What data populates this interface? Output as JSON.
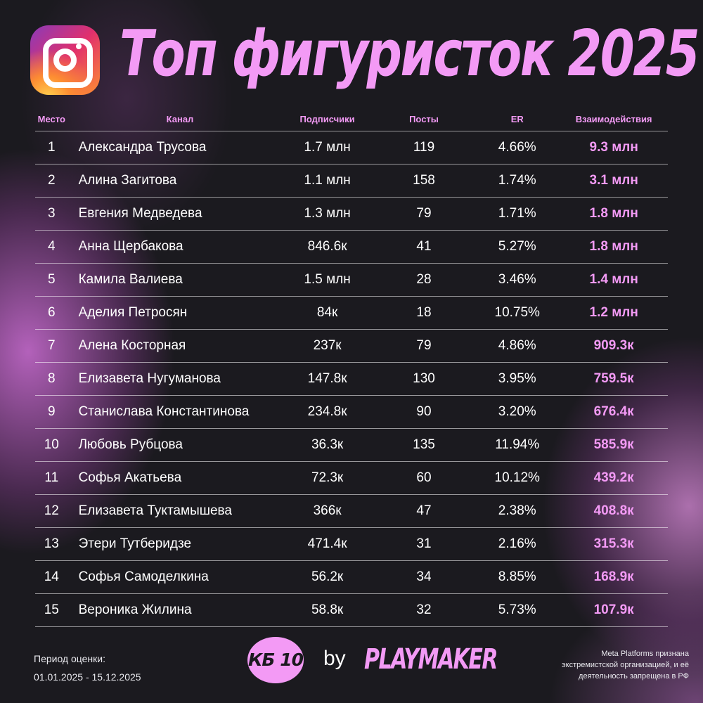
{
  "header": {
    "title": "Топ фигуристок 2025",
    "logo_icon": "instagram-icon"
  },
  "table": {
    "columns": [
      "Место",
      "Канал",
      "Подписчики",
      "Посты",
      "ER",
      "Взаимодействия"
    ],
    "rows": [
      {
        "rank": "1",
        "name": "Александра Трусова",
        "subs": "1.7 млн",
        "posts": "119",
        "er": "4.66%",
        "interactions": "9.3 млн"
      },
      {
        "rank": "2",
        "name": "Алина Загитова",
        "subs": "1.1 млн",
        "posts": "158",
        "er": "1.74%",
        "interactions": "3.1 млн"
      },
      {
        "rank": "3",
        "name": "Евгения Медведева",
        "subs": "1.3 млн",
        "posts": "79",
        "er": "1.71%",
        "interactions": "1.8 млн"
      },
      {
        "rank": "4",
        "name": "Анна Щербакова",
        "subs": "846.6к",
        "posts": "41",
        "er": "5.27%",
        "interactions": "1.8 млн"
      },
      {
        "rank": "5",
        "name": "Камила Валиева",
        "subs": "1.5 млн",
        "posts": "28",
        "er": "3.46%",
        "interactions": "1.4 млн"
      },
      {
        "rank": "6",
        "name": "Аделия Петросян",
        "subs": "84к",
        "posts": "18",
        "er": "10.75%",
        "interactions": "1.2 млн"
      },
      {
        "rank": "7",
        "name": "Алена Косторная",
        "subs": "237к",
        "posts": "79",
        "er": "4.86%",
        "interactions": "909.3к"
      },
      {
        "rank": "8",
        "name": "Елизавета Нугуманова",
        "subs": "147.8к",
        "posts": "130",
        "er": "3.95%",
        "interactions": "759.5к"
      },
      {
        "rank": "9",
        "name": "Станислава Константинова",
        "subs": "234.8к",
        "posts": "90",
        "er": "3.20%",
        "interactions": "676.4к"
      },
      {
        "rank": "10",
        "name": "Любовь Рубцова",
        "subs": "36.3к",
        "posts": "135",
        "er": "11.94%",
        "interactions": "585.9к"
      },
      {
        "rank": "11",
        "name": "Софья Акатьева",
        "subs": "72.3к",
        "posts": "60",
        "er": "10.12%",
        "interactions": "439.2к"
      },
      {
        "rank": "12",
        "name": "Елизавета Туктамышева",
        "subs": "366к",
        "posts": "47",
        "er": "2.38%",
        "interactions": "408.8к"
      },
      {
        "rank": "13",
        "name": "Этери Тутберидзе",
        "subs": "471.4к",
        "posts": "31",
        "er": "2.16%",
        "interactions": "315.3к"
      },
      {
        "rank": "14",
        "name": "Софья Самоделкина",
        "subs": "56.2к",
        "posts": "34",
        "er": "8.85%",
        "interactions": "168.9к"
      },
      {
        "rank": "15",
        "name": "Вероника Жилина",
        "subs": "58.8к",
        "posts": "32",
        "er": "5.73%",
        "interactions": "107.9к"
      }
    ]
  },
  "footer": {
    "period_label": "Период оценки:",
    "period_value": "01.01.2025 - 15.12.2025",
    "kb_logo": "КБ 10",
    "by": "by",
    "playmaker_logo": "PLAYMAKER",
    "disclaimer_line1": "Meta Platforms признана",
    "disclaimer_line2": "экстремистской организацией, и её",
    "disclaimer_line3": "деятельность запрещена в РФ"
  },
  "colors": {
    "background": "#1b1a1f",
    "accent_pink": "#f39af5",
    "text": "#ffffff"
  }
}
